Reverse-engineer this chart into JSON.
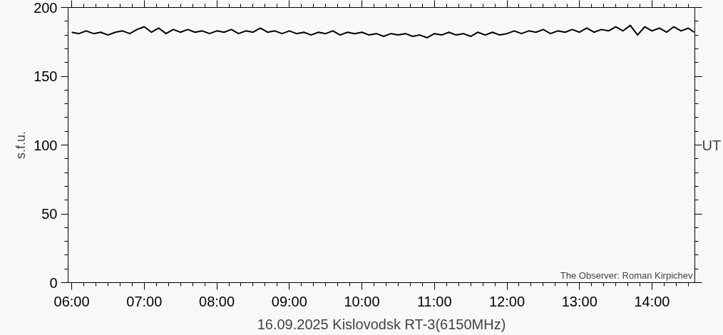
{
  "chart_data": {
    "type": "line",
    "title": "16.09.2025 Kislovodsk RT-3(6150MHz)",
    "xlabel": "UT",
    "ylabel": "s.f.u.",
    "annotations": [
      "The Observer: Roman Kirpichev"
    ],
    "x": [
      6.0,
      6.1,
      6.2,
      6.3,
      6.4,
      6.5,
      6.6,
      6.7,
      6.8,
      6.9,
      7.0,
      7.1,
      7.2,
      7.3,
      7.4,
      7.5,
      7.6,
      7.7,
      7.8,
      7.9,
      8.0,
      8.1,
      8.2,
      8.3,
      8.4,
      8.5,
      8.6,
      8.7,
      8.8,
      8.9,
      9.0,
      9.1,
      9.2,
      9.3,
      9.4,
      9.5,
      9.6,
      9.7,
      9.8,
      9.9,
      10.0,
      10.1,
      10.2,
      10.3,
      10.4,
      10.5,
      10.6,
      10.7,
      10.8,
      10.9,
      11.0,
      11.1,
      11.2,
      11.3,
      11.4,
      11.5,
      11.6,
      11.7,
      11.8,
      11.9,
      12.0,
      12.1,
      12.2,
      12.3,
      12.4,
      12.5,
      12.6,
      12.7,
      12.8,
      12.9,
      13.0,
      13.1,
      13.2,
      13.3,
      13.4,
      13.5,
      13.6,
      13.7,
      13.8,
      13.9,
      14.0,
      14.1,
      14.2,
      14.3,
      14.4,
      14.5,
      14.58
    ],
    "series": [
      {
        "color": "#000000",
        "values": [
          182,
          181,
          183,
          181,
          182,
          180,
          182,
          183,
          181,
          184,
          186,
          182,
          185,
          181,
          184,
          182,
          184,
          182,
          183,
          181,
          183,
          182,
          184,
          181,
          183,
          182,
          185,
          182,
          183,
          181,
          183,
          181,
          182,
          180,
          182,
          181,
          183,
          180,
          182,
          181,
          182,
          180,
          181,
          179,
          181,
          180,
          181,
          179,
          180,
          178,
          181,
          180,
          182,
          180,
          181,
          179,
          182,
          180,
          182,
          180,
          181,
          183,
          181,
          183,
          182,
          184,
          181,
          183,
          182,
          184,
          182,
          185,
          182,
          184,
          183,
          186,
          183,
          187,
          180,
          186,
          183,
          185,
          182,
          186,
          183,
          185,
          182
        ]
      }
    ],
    "xlim": [
      5.95,
      14.59
    ],
    "ylim": [
      0,
      200
    ],
    "xticks": [
      {
        "value": 6,
        "label": "06:00"
      },
      {
        "value": 7,
        "label": "07:00"
      },
      {
        "value": 8,
        "label": "08:00"
      },
      {
        "value": 9,
        "label": "09:00"
      },
      {
        "value": 10,
        "label": "10:00"
      },
      {
        "value": 11,
        "label": "11:00"
      },
      {
        "value": 12,
        "label": "12:00"
      },
      {
        "value": 13,
        "label": "13:00"
      },
      {
        "value": 14,
        "label": "14:00"
      }
    ],
    "yticks": [
      0,
      50,
      100,
      150,
      200
    ],
    "grid": false,
    "line_style": "solid"
  }
}
